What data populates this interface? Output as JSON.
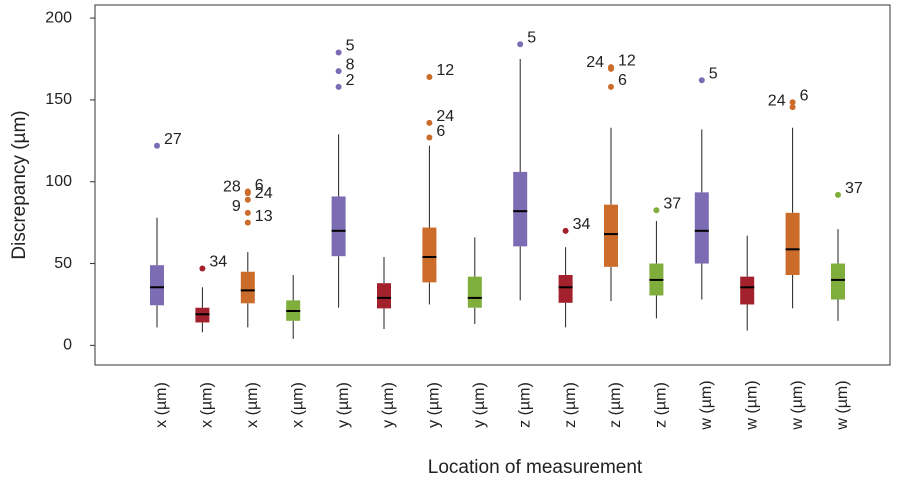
{
  "chart_data": {
    "type": "box",
    "y_label": "Discrepancy (µm)",
    "x_label": "Location of measurement",
    "ylim": [
      -12,
      208
    ],
    "yticks": [
      0,
      50,
      100,
      150,
      200
    ],
    "categories": [
      "x (µm)",
      "x (µm)",
      "x (µm)",
      "x (µm)",
      "y (µm)",
      "y (µm)",
      "y (µm)",
      "y (µm)",
      "z (µm)",
      "z (µm)",
      "z (µm)",
      "z (µm)",
      "w (µm)",
      "w (µm)",
      "w (µm)",
      "w (µm)"
    ],
    "colors": [
      "#7b6cb4",
      "#a3212c",
      "#cc6c2a",
      "#7fae3c",
      "#7b6cb4",
      "#a3212c",
      "#cc6c2a",
      "#7fae3c",
      "#7b6cb4",
      "#a3212c",
      "#cc6c2a",
      "#7fae3c",
      "#7b6cb4",
      "#a3212c",
      "#cc6c2a",
      "#7fae3c"
    ],
    "boxes": [
      {
        "whislo": 11,
        "q1": 24.5,
        "med": 35.5,
        "q3": 49,
        "whishi": 78,
        "outliers": [
          122
        ],
        "outlier_labels": [
          "27"
        ]
      },
      {
        "whislo": 8,
        "q1": 14,
        "med": 19,
        "q3": 23,
        "whishi": 35.5,
        "outliers": [
          47
        ],
        "outlier_labels": [
          "34"
        ]
      },
      {
        "whislo": 11,
        "q1": 25.7,
        "med": 33.6,
        "q3": 45,
        "whishi": 57,
        "outliers": [
          94,
          93,
          89,
          81,
          75
        ],
        "outlier_labels": [
          "6",
          "28",
          "24",
          "9",
          "13"
        ]
      },
      {
        "whislo": 4,
        "q1": 15,
        "med": 21,
        "q3": 27.5,
        "whishi": 43,
        "outliers": [],
        "outlier_labels": []
      },
      {
        "whislo": 23,
        "q1": 54.5,
        "med": 70,
        "q3": 91,
        "whishi": 129,
        "outliers": [
          179,
          167.6,
          158
        ],
        "outlier_labels": [
          "5",
          "8",
          "2"
        ]
      },
      {
        "whislo": 10,
        "q1": 22.6,
        "med": 29,
        "q3": 38,
        "whishi": 54,
        "outliers": [],
        "outlier_labels": []
      },
      {
        "whislo": 25,
        "q1": 38.5,
        "med": 54,
        "q3": 72,
        "whishi": 122,
        "outliers": [
          164,
          136,
          127
        ],
        "outlier_labels": [
          "12",
          "24",
          "6"
        ]
      },
      {
        "whislo": 13,
        "q1": 23,
        "med": 29,
        "q3": 42,
        "whishi": 66,
        "outliers": [],
        "outlier_labels": []
      },
      {
        "whislo": 27.5,
        "q1": 60.5,
        "med": 82,
        "q3": 106,
        "whishi": 175,
        "outliers": [
          184
        ],
        "outlier_labels": [
          "5"
        ]
      },
      {
        "whislo": 11,
        "q1": 26,
        "med": 35.5,
        "q3": 43,
        "whishi": 60,
        "outliers": [
          70
        ],
        "outlier_labels": [
          "34"
        ]
      },
      {
        "whislo": 27,
        "q1": 48,
        "med": 68,
        "q3": 86,
        "whishi": 133,
        "outliers": [
          170,
          169,
          158
        ],
        "outlier_labels": [
          "12",
          "24",
          "6"
        ]
      },
      {
        "whislo": 16.5,
        "q1": 30.5,
        "med": 40,
        "q3": 50,
        "whishi": 76,
        "outliers": [
          82.6
        ],
        "outlier_labels": [
          "37"
        ]
      },
      {
        "whislo": 28,
        "q1": 50,
        "med": 70,
        "q3": 93.5,
        "whishi": 132,
        "outliers": [
          162
        ],
        "outlier_labels": [
          "5"
        ]
      },
      {
        "whislo": 9,
        "q1": 25,
        "med": 35.5,
        "q3": 42,
        "whishi": 67,
        "outliers": [],
        "outlier_labels": []
      },
      {
        "whislo": 22.6,
        "q1": 43,
        "med": 58.7,
        "q3": 81,
        "whishi": 133,
        "outliers": [
          148.6,
          145.6
        ],
        "outlier_labels": [
          "6",
          "24"
        ]
      },
      {
        "whislo": 15,
        "q1": 28,
        "med": 40,
        "q3": 50,
        "whishi": 71,
        "outliers": [
          92
        ],
        "outlier_labels": [
          "37"
        ]
      }
    ]
  }
}
